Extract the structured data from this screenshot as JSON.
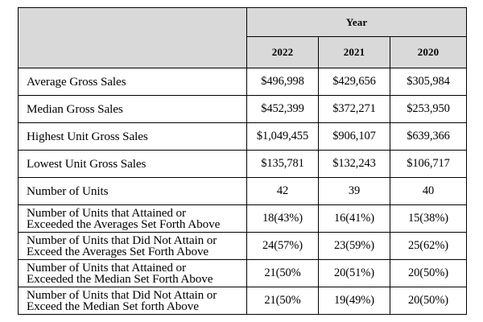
{
  "table": {
    "group_header": "Year",
    "years": [
      "2022",
      "2021",
      "2020"
    ],
    "rows": [
      {
        "label": "Average Gross Sales",
        "values": [
          "$496,998",
          "$429,656",
          "$305,984"
        ]
      },
      {
        "label": "Median Gross Sales",
        "values": [
          "$452,399",
          "$372,271",
          "$253,950"
        ]
      },
      {
        "label": "Highest Unit Gross Sales",
        "values": [
          "$1,049,455",
          "$906,107",
          "$639,366"
        ]
      },
      {
        "label": "Lowest Unit Gross Sales",
        "values": [
          "$135,781",
          "$132,243",
          "$106,717"
        ]
      },
      {
        "label": "Number of Units",
        "values": [
          "42",
          "39",
          "40"
        ]
      },
      {
        "label_line1": "Number of Units that Attained or",
        "label_line2": "Exceeded the Averages Set Forth Above",
        "values": [
          "18(43%)",
          "16(41%)",
          "15(38%)"
        ]
      },
      {
        "label_line1": "Number of Units that Did Not Attain or",
        "label_line2": "Exceed the Averages Set Forth Above",
        "values": [
          "24(57%)",
          "23(59%)",
          "25(62%)"
        ]
      },
      {
        "label_line1": "Number of Units that Attained or",
        "label_line2": "Exceeded the Median Set Forth Above",
        "values": [
          "21(50%",
          "20(51%)",
          "20(50%)"
        ]
      },
      {
        "label_line1": "Number of Units that Did Not Attain or",
        "label_line2": "Exceed the Median Set forth Above",
        "values": [
          "21(50%",
          "19(49%)",
          "20(50%)"
        ]
      }
    ]
  }
}
